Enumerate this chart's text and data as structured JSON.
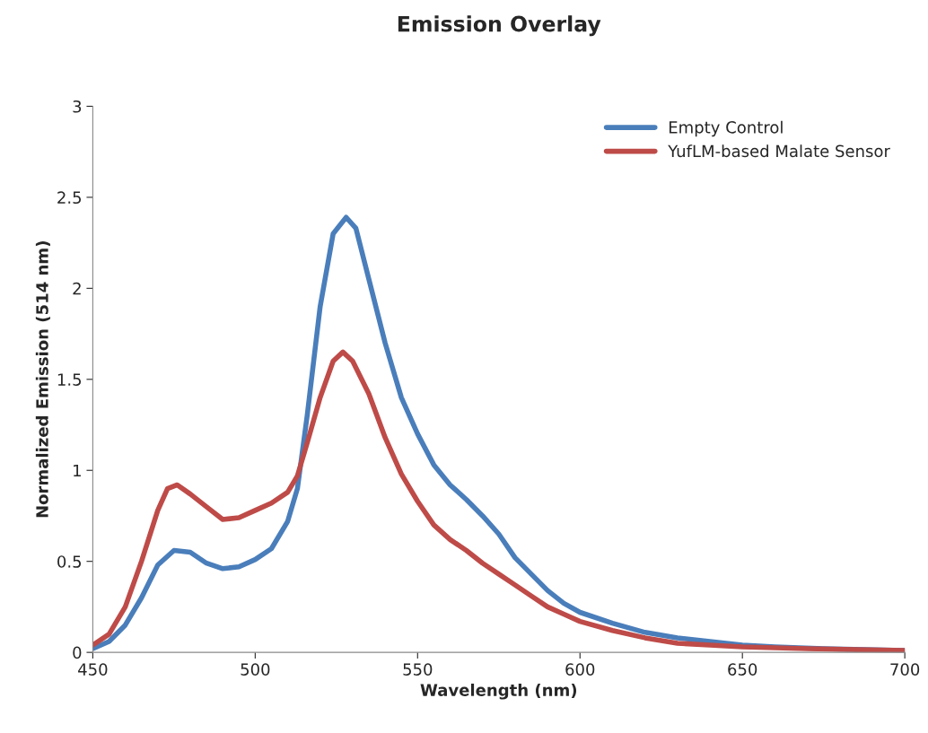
{
  "chart_data": {
    "type": "line",
    "title": "Emission Overlay",
    "xlabel": "Wavelength (nm)",
    "ylabel": "Normalized Emission (514 nm)",
    "xlim": [
      450,
      700
    ],
    "xticks": [
      450,
      500,
      550,
      600,
      650,
      700
    ],
    "ylim": [
      0,
      3
    ],
    "yticks": [
      0,
      0.5,
      1,
      1.5,
      2,
      2.5,
      3
    ],
    "grid": false,
    "legend": "top right",
    "marker": "none",
    "line_style": "solid",
    "series": [
      {
        "name": "Empty Control",
        "color": "#4a7ebb",
        "x": [
          450,
          455,
          460,
          465,
          470,
          475,
          480,
          485,
          490,
          495,
          500,
          505,
          510,
          513,
          516,
          520,
          524,
          528,
          531,
          535,
          540,
          545,
          550,
          555,
          560,
          565,
          570,
          575,
          580,
          585,
          590,
          595,
          600,
          610,
          620,
          630,
          640,
          650,
          660,
          675,
          700
        ],
        "values": [
          0.02,
          0.06,
          0.15,
          0.3,
          0.48,
          0.56,
          0.55,
          0.49,
          0.46,
          0.47,
          0.51,
          0.57,
          0.72,
          0.9,
          1.3,
          1.9,
          2.3,
          2.39,
          2.33,
          2.05,
          1.7,
          1.4,
          1.2,
          1.03,
          0.92,
          0.84,
          0.75,
          0.65,
          0.52,
          0.43,
          0.34,
          0.27,
          0.22,
          0.16,
          0.11,
          0.08,
          0.06,
          0.04,
          0.03,
          0.02,
          0.01
        ]
      },
      {
        "name": "YufLM-based Malate Sensor",
        "color": "#be4b48",
        "x": [
          450,
          455,
          460,
          465,
          470,
          473,
          476,
          480,
          485,
          490,
          495,
          500,
          505,
          510,
          513,
          516,
          520,
          524,
          527,
          530,
          535,
          540,
          545,
          550,
          555,
          560,
          565,
          570,
          575,
          580,
          585,
          590,
          595,
          600,
          610,
          620,
          630,
          640,
          650,
          670,
          700
        ],
        "values": [
          0.04,
          0.1,
          0.25,
          0.5,
          0.78,
          0.9,
          0.92,
          0.87,
          0.8,
          0.73,
          0.74,
          0.78,
          0.82,
          0.88,
          0.97,
          1.15,
          1.4,
          1.6,
          1.65,
          1.6,
          1.42,
          1.18,
          0.98,
          0.83,
          0.7,
          0.62,
          0.56,
          0.49,
          0.43,
          0.37,
          0.31,
          0.25,
          0.21,
          0.17,
          0.12,
          0.08,
          0.05,
          0.04,
          0.03,
          0.02,
          0.01
        ]
      }
    ]
  }
}
